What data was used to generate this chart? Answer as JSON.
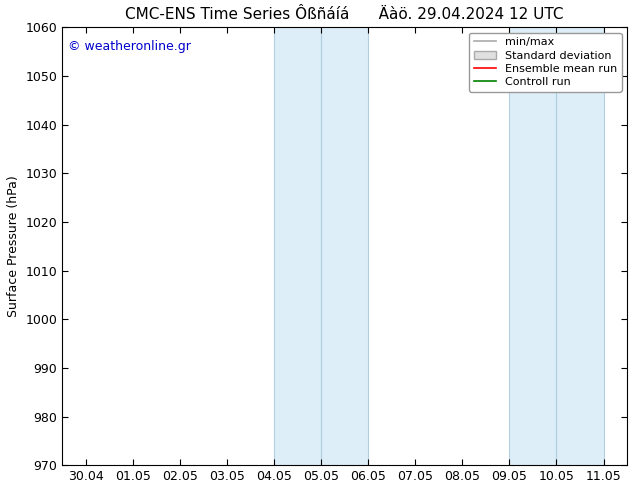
{
  "title": "CMC-ENS Time Series Ôßñáíá      Äàö. 29.04.2024 12 UTC",
  "ylabel": "Surface Pressure (hPa)",
  "ylim": [
    970,
    1060
  ],
  "yticks": [
    970,
    980,
    990,
    1000,
    1010,
    1020,
    1030,
    1040,
    1050,
    1060
  ],
  "xtick_labels": [
    "30.04",
    "01.05",
    "02.05",
    "03.05",
    "04.05",
    "05.05",
    "06.05",
    "07.05",
    "08.05",
    "09.05",
    "10.05",
    "11.05"
  ],
  "xtick_positions": [
    0,
    1,
    2,
    3,
    4,
    5,
    6,
    7,
    8,
    9,
    10,
    11
  ],
  "shaded_bands": [
    {
      "xstart": 4.0,
      "xend": 5.0
    },
    {
      "xstart": 5.0,
      "xend": 6.0
    },
    {
      "xstart": 9.0,
      "xend": 10.0
    },
    {
      "xstart": 10.0,
      "xend": 11.0
    }
  ],
  "shade_color": "#ddeef8",
  "band_edge_color": "#b0cfe0",
  "watermark": "© weatheronline.gr",
  "watermark_color": "#0000cc",
  "background_color": "#ffffff",
  "plot_bg_color": "#ffffff",
  "legend_labels": [
    "min/max",
    "Standard deviation",
    "Ensemble mean run",
    "Controll run"
  ],
  "legend_colors": [
    "#aaaaaa",
    "#cccccc",
    "#ff0000",
    "#008000"
  ],
  "title_fontsize": 11,
  "axis_fontsize": 9,
  "tick_fontsize": 9
}
